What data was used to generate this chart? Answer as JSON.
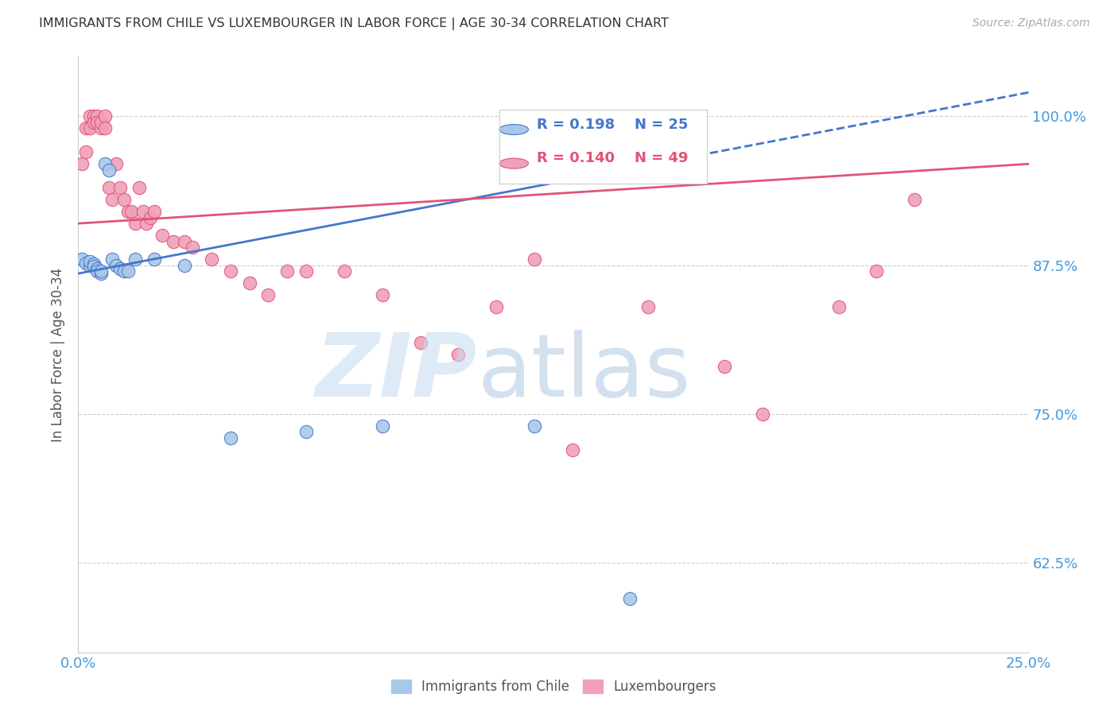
{
  "title": "IMMIGRANTS FROM CHILE VS LUXEMBOURGER IN LABOR FORCE | AGE 30-34 CORRELATION CHART",
  "source": "Source: ZipAtlas.com",
  "ylabel": "In Labor Force | Age 30-34",
  "xlim": [
    0.0,
    0.25
  ],
  "ylim": [
    0.55,
    1.05
  ],
  "yticks": [
    0.625,
    0.75,
    0.875,
    1.0
  ],
  "ytick_labels": [
    "62.5%",
    "75.0%",
    "87.5%",
    "100.0%"
  ],
  "xticks": [
    0.0,
    0.05,
    0.1,
    0.15,
    0.2,
    0.25
  ],
  "xtick_labels": [
    "0.0%",
    "",
    "",
    "",
    "",
    "25.0%"
  ],
  "legend_blue_r": "R = 0.198",
  "legend_blue_n": "N = 25",
  "legend_pink_r": "R = 0.140",
  "legend_pink_n": "N = 49",
  "blue_color": "#A8C8E8",
  "pink_color": "#F0A0B8",
  "blue_line_color": "#4477CC",
  "pink_line_color": "#E05575",
  "axis_color": "#4499DD",
  "title_color": "#333333",
  "blue_x": [
    0.001,
    0.002,
    0.003,
    0.003,
    0.004,
    0.004,
    0.005,
    0.005,
    0.006,
    0.006,
    0.007,
    0.008,
    0.009,
    0.01,
    0.011,
    0.012,
    0.013,
    0.015,
    0.02,
    0.028,
    0.04,
    0.06,
    0.08,
    0.12,
    0.145
  ],
  "blue_y": [
    0.88,
    0.877,
    0.875,
    0.878,
    0.876,
    0.874,
    0.872,
    0.87,
    0.868,
    0.87,
    0.96,
    0.955,
    0.88,
    0.875,
    0.872,
    0.87,
    0.87,
    0.88,
    0.88,
    0.875,
    0.73,
    0.735,
    0.74,
    0.74,
    0.595
  ],
  "pink_x": [
    0.001,
    0.002,
    0.002,
    0.003,
    0.003,
    0.004,
    0.004,
    0.005,
    0.005,
    0.006,
    0.006,
    0.007,
    0.007,
    0.008,
    0.009,
    0.01,
    0.011,
    0.012,
    0.013,
    0.014,
    0.015,
    0.016,
    0.017,
    0.018,
    0.019,
    0.02,
    0.022,
    0.025,
    0.028,
    0.03,
    0.035,
    0.04,
    0.045,
    0.05,
    0.055,
    0.06,
    0.07,
    0.08,
    0.09,
    0.1,
    0.11,
    0.12,
    0.13,
    0.15,
    0.17,
    0.18,
    0.2,
    0.21,
    0.22
  ],
  "pink_y": [
    0.96,
    0.97,
    0.99,
    0.99,
    1.0,
    1.0,
    0.995,
    1.0,
    0.995,
    0.99,
    0.995,
    1.0,
    0.99,
    0.94,
    0.93,
    0.96,
    0.94,
    0.93,
    0.92,
    0.92,
    0.91,
    0.94,
    0.92,
    0.91,
    0.915,
    0.92,
    0.9,
    0.895,
    0.895,
    0.89,
    0.88,
    0.87,
    0.86,
    0.85,
    0.87,
    0.87,
    0.87,
    0.85,
    0.81,
    0.8,
    0.84,
    0.88,
    0.72,
    0.84,
    0.79,
    0.75,
    0.84,
    0.87,
    0.93
  ],
  "blue_trend_x0": 0.0,
  "blue_trend_x1": 0.25,
  "blue_trend_y0": 0.868,
  "blue_trend_y1": 1.02,
  "pink_trend_x0": 0.0,
  "pink_trend_x1": 0.25,
  "pink_trend_y0": 0.91,
  "pink_trend_y1": 0.96
}
